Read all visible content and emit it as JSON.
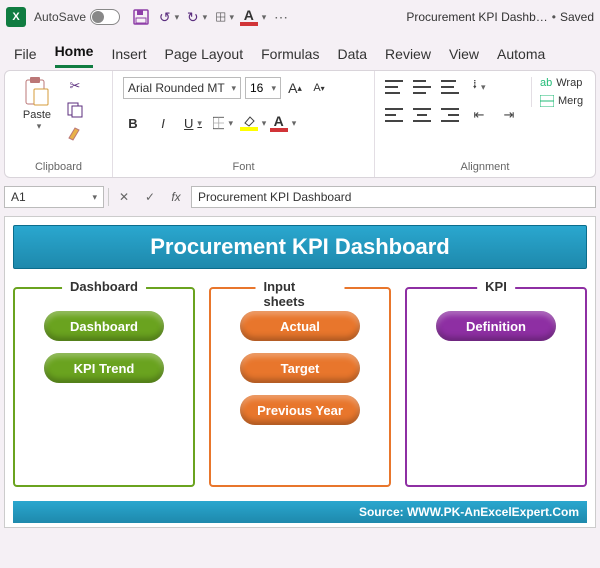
{
  "titlebar": {
    "autosave_label": "AutoSave",
    "doc_name": "Procurement KPI Dashb…",
    "saved_label": "Saved"
  },
  "tabs": [
    "File",
    "Home",
    "Insert",
    "Page Layout",
    "Formulas",
    "Data",
    "Review",
    "View",
    "Automa"
  ],
  "active_tab_index": 1,
  "ribbon": {
    "clipboard": {
      "paste_label": "Paste",
      "group_label": "Clipboard"
    },
    "font": {
      "name": "Arial Rounded MT",
      "size": "16",
      "group_label": "Font",
      "fill_color": "#ffff00",
      "text_color": "#d13438",
      "border_underline_color": "#d13438"
    },
    "alignment": {
      "group_label": "Alignment",
      "wrap_label": "Wrap",
      "merge_label": "Merg"
    }
  },
  "namebar": {
    "cell": "A1",
    "formula": "Procurement KPI Dashboard"
  },
  "dashboard": {
    "title": "Procurement KPI Dashboard",
    "title_bg": "#1e9bc4",
    "boxes": [
      {
        "label": "Dashboard",
        "border": "#6aa31f",
        "pill_bg": "#6aa31f",
        "items": [
          "Dashboard",
          "KPI Trend"
        ]
      },
      {
        "label": "Input sheets",
        "border": "#e8762c",
        "pill_bg": "#e8762c",
        "items": [
          "Actual",
          "Target",
          "Previous Year"
        ]
      },
      {
        "label": "KPI",
        "border": "#8e2fa3",
        "pill_bg": "#8e2fa3",
        "items": [
          "Definition"
        ]
      }
    ],
    "source": "Source: WWW.PK-AnExcelExpert.Com"
  }
}
